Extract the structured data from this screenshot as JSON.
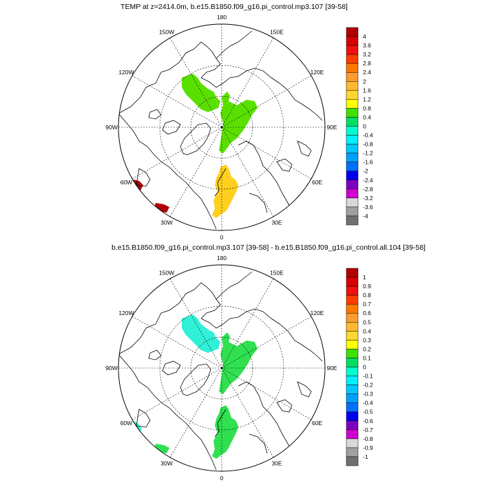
{
  "colors": {
    "ocean": "#ffffff",
    "coast": "#000000",
    "grid": "#000000"
  },
  "panels": [
    {
      "title": "TEMP at z=2414.0m, b.e15.B1850.f09_g16.pi_control.mp3.107 [39-58]",
      "lon_labels": {
        "180": "180",
        "150W": "150W",
        "150E": "150E",
        "120W": "120W",
        "120E": "120E",
        "90W": "90W",
        "90E": "90E",
        "60W": "60W",
        "60E": "60E",
        "30W": "30W",
        "30E": "30E",
        "0": "0"
      },
      "colorbar": {
        "labels": [
          "4",
          "3.6",
          "3.2",
          "2.8",
          "2.4",
          "2",
          "1.6",
          "1.2",
          "0.8",
          "0.4",
          "0",
          "-0.4",
          "-0.8",
          "-1.2",
          "-1.6",
          "-2",
          "-2.4",
          "-2.8",
          "-3.2",
          "-3.6",
          "-4"
        ],
        "colors": [
          "#b00000",
          "#d80000",
          "#f01010",
          "#ff3c00",
          "#ff7800",
          "#ff9a30",
          "#ffb830",
          "#ffd730",
          "#ffff00",
          "#40e000",
          "#00e060",
          "#00ffd0",
          "#00f0ff",
          "#00c8ff",
          "#00a0ff",
          "#0070ff",
          "#0000f0",
          "#8000c0",
          "#d000d0",
          "#d8d8d8",
          "#a0a0a0",
          "#707070"
        ]
      },
      "fields": [
        {
          "name": "positive-anomaly-region-pacific",
          "color": "#5ae000"
        },
        {
          "name": "positive-anomaly-region-central",
          "color": "#5ae000"
        },
        {
          "name": "positive-anomaly-region-atlantic",
          "color": "#ffd020"
        },
        {
          "name": "high-anomaly-region-labrador",
          "color": "#b00000"
        },
        {
          "name": "high-anomaly-region-greenland",
          "color": "#b00000"
        }
      ]
    },
    {
      "title": "b.e15.B1850.f09_g16.pi_control.mp3.107 [39-58] - b.e15.B1850.f09_g16.pi_control.all.104 [39-58]",
      "lon_labels": {
        "180": "180",
        "150W": "150W",
        "150E": "150E",
        "120W": "120W",
        "120E": "120E",
        "90W": "90W",
        "90E": "90E",
        "60W": "60W",
        "60E": "60E",
        "30W": "30W",
        "30E": "30E",
        "0": "0"
      },
      "colorbar": {
        "labels": [
          "1",
          "0.9",
          "0.8",
          "0.7",
          "0.6",
          "0.5",
          "0.4",
          "0.3",
          "0.2",
          "0.1",
          "0",
          "-0.1",
          "-0.2",
          "-0.3",
          "-0.4",
          "-0.5",
          "-0.6",
          "-0.7",
          "-0.8",
          "-0.9",
          "-1"
        ],
        "colors": [
          "#b00000",
          "#d80000",
          "#f01010",
          "#ff3c00",
          "#ff7800",
          "#ff9a30",
          "#ffb830",
          "#ffd730",
          "#ffff00",
          "#40e000",
          "#00e060",
          "#00ffd0",
          "#00f0ff",
          "#00c8ff",
          "#00a0ff",
          "#0070ff",
          "#0000f0",
          "#8000c0",
          "#d000d0",
          "#d8d8d8",
          "#a0a0a0",
          "#707070"
        ]
      },
      "fields": [
        {
          "name": "negative-anomaly-region-pacific",
          "color": "#30f0d8"
        },
        {
          "name": "positive-anomaly-region-central",
          "color": "#30e050"
        },
        {
          "name": "positive-anomaly-region-atlantic",
          "color": "#30e050"
        },
        {
          "name": "negative-anomaly-region-labrador",
          "color": "#30f0d8"
        },
        {
          "name": "positive-anomaly-region-greenland",
          "color": "#30e050"
        }
      ]
    }
  ]
}
